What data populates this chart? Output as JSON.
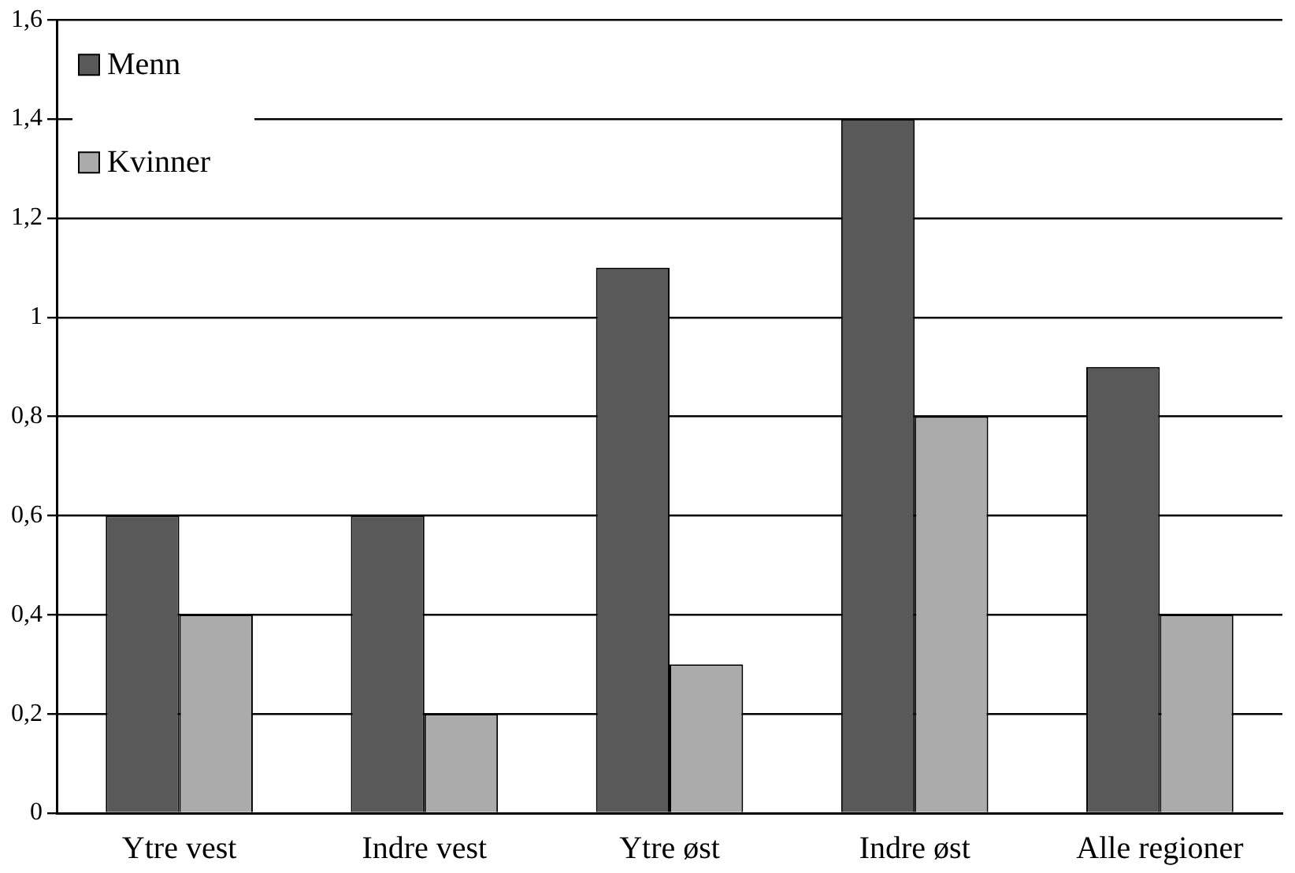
{
  "chart_data": {
    "type": "bar",
    "categories": [
      "Ytre vest",
      "Indre vest",
      "Ytre øst",
      "Indre øst",
      "Alle regioner"
    ],
    "series": [
      {
        "name": "Menn",
        "color": "#595959",
        "values": [
          0.6,
          0.6,
          1.1,
          1.4,
          0.9
        ]
      },
      {
        "name": "Kvinner",
        "color": "#ababab",
        "values": [
          0.4,
          0.2,
          0.3,
          0.8,
          0.4
        ]
      }
    ],
    "ylim": [
      0,
      1.6
    ],
    "yticks": [
      0,
      {
        "value": 0.2,
        "label": "0,2"
      },
      {
        "value": 0.4,
        "label": "0,4"
      },
      {
        "value": 0.6,
        "label": "0,6"
      },
      {
        "value": 0.8,
        "label": "0,8"
      },
      1,
      {
        "value": 1.2,
        "label": "1,2"
      },
      {
        "value": 1.4,
        "label": "1,4"
      },
      {
        "value": 1.6,
        "label": "1,6"
      }
    ],
    "grid": "y",
    "legend": "top left"
  }
}
